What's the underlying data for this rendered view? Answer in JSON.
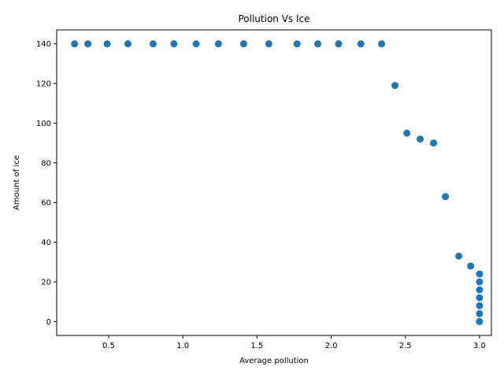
{
  "chart_data": {
    "type": "scatter",
    "title": "Pollution Vs Ice",
    "xlabel": "Average pollution",
    "ylabel": "Amount of ice",
    "xlim": [
      0.15,
      3.08
    ],
    "ylim": [
      -7,
      147
    ],
    "xticks": [
      0.5,
      1.0,
      1.5,
      2.0,
      2.5,
      3.0
    ],
    "xtick_labels": [
      "0.5",
      "1.0",
      "1.5",
      "2.0",
      "2.5",
      "3.0"
    ],
    "yticks": [
      0,
      20,
      40,
      60,
      80,
      100,
      120,
      140
    ],
    "ytick_labels": [
      "0",
      "20",
      "40",
      "60",
      "80",
      "100",
      "120",
      "140"
    ],
    "grid": false,
    "marker_color": "#1f77b4",
    "points": [
      {
        "x": 0.27,
        "y": 140
      },
      {
        "x": 0.36,
        "y": 140
      },
      {
        "x": 0.49,
        "y": 140
      },
      {
        "x": 0.63,
        "y": 140
      },
      {
        "x": 0.8,
        "y": 140
      },
      {
        "x": 0.94,
        "y": 140
      },
      {
        "x": 1.09,
        "y": 140
      },
      {
        "x": 1.24,
        "y": 140
      },
      {
        "x": 1.41,
        "y": 140
      },
      {
        "x": 1.58,
        "y": 140
      },
      {
        "x": 1.77,
        "y": 140
      },
      {
        "x": 1.91,
        "y": 140
      },
      {
        "x": 2.05,
        "y": 140
      },
      {
        "x": 2.2,
        "y": 140
      },
      {
        "x": 2.34,
        "y": 140
      },
      {
        "x": 2.43,
        "y": 119
      },
      {
        "x": 2.51,
        "y": 95
      },
      {
        "x": 2.6,
        "y": 92
      },
      {
        "x": 2.69,
        "y": 90
      },
      {
        "x": 2.77,
        "y": 63
      },
      {
        "x": 2.86,
        "y": 33
      },
      {
        "x": 2.94,
        "y": 28
      },
      {
        "x": 3.0,
        "y": 24
      },
      {
        "x": 3.0,
        "y": 20
      },
      {
        "x": 3.0,
        "y": 16
      },
      {
        "x": 3.0,
        "y": 12
      },
      {
        "x": 3.0,
        "y": 8
      },
      {
        "x": 3.0,
        "y": 4
      },
      {
        "x": 3.0,
        "y": 0
      }
    ]
  }
}
